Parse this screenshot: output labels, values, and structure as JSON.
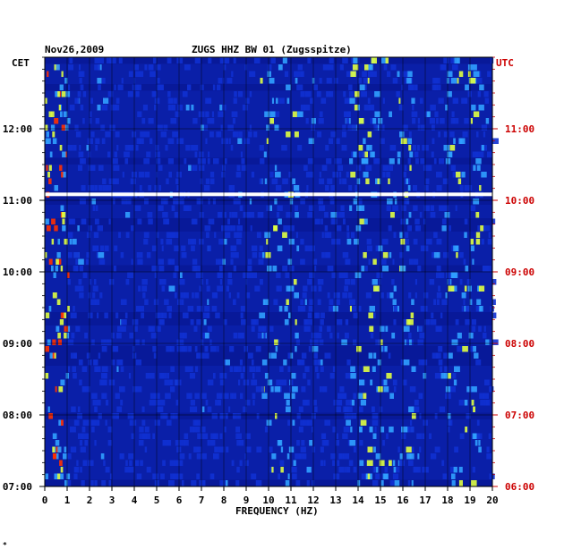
{
  "header": {
    "date": "Nov26,2009",
    "title": "ZUGS HHZ BW 01 (Zugsspitze)",
    "left_tz": "CET",
    "right_tz": "UTC"
  },
  "corner_mark": "*",
  "chart_data": {
    "type": "heatmap",
    "title": "ZUGS HHZ BW 01 (Zugsspitze)",
    "xlabel": "FREQUENCY (HZ)",
    "x_ticks": [
      "0",
      "1",
      "2",
      "3",
      "4",
      "5",
      "6",
      "7",
      "8",
      "9",
      "10",
      "11",
      "12",
      "13",
      "14",
      "15",
      "16",
      "17",
      "18",
      "19",
      "20"
    ],
    "xlim": [
      0,
      20
    ],
    "y_range_cet": [
      "07:00",
      "13:00"
    ],
    "y_left_ticks_cet": [
      "12:00",
      "11:00",
      "10:00",
      "09:00",
      "08:00",
      "07:00"
    ],
    "y_right_ticks_utc": [
      "11:00",
      "10:00",
      "09:00",
      "08:00",
      "07:00",
      "06:00"
    ],
    "data_gap_cet": "11:05",
    "colors": {
      "background": "#0a1fa8",
      "low": "#1030d0",
      "mid": "#30a0ff",
      "high": "#e0ff40",
      "peak": "#ff3000"
    },
    "grid": true
  }
}
